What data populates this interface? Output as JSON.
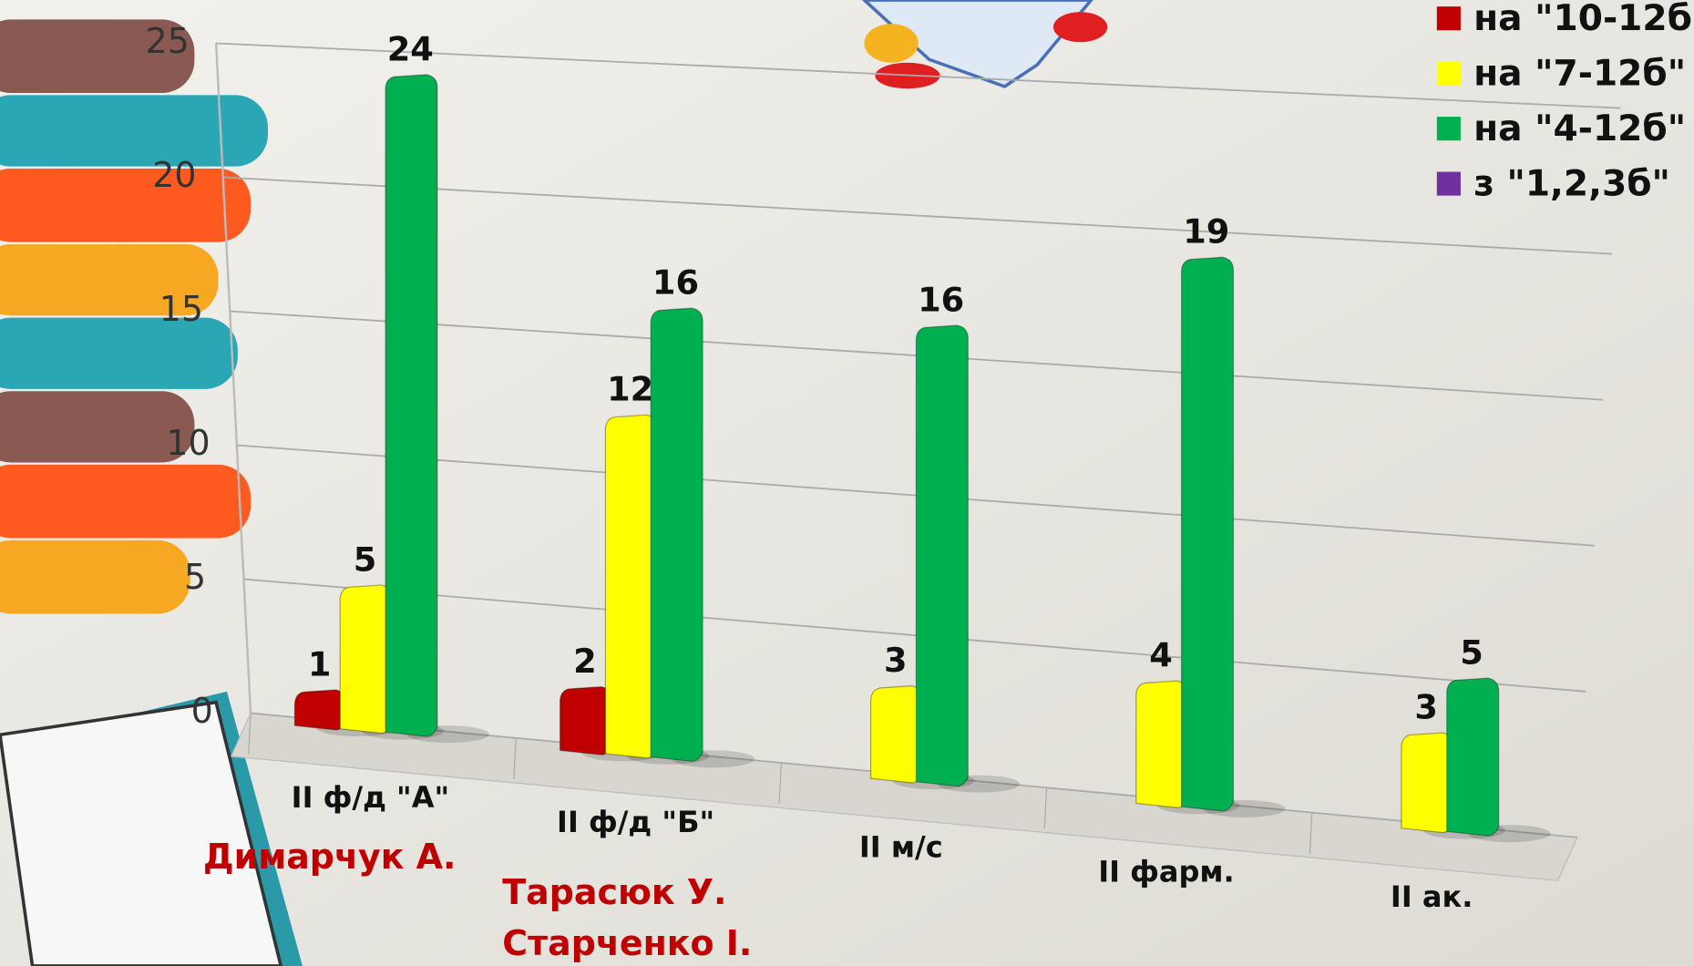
{
  "chart_data": {
    "type": "bar3d",
    "categories": [
      "II ф/д \"А\"",
      "II ф/д \"Б\"",
      "II м/с",
      "II фарм.",
      "II ак."
    ],
    "series": [
      {
        "name": "на \"10-12б\"",
        "color": "#c00000",
        "values": [
          1,
          2,
          null,
          null,
          null
        ]
      },
      {
        "name": "на \"7-12б\"",
        "color": "#ffff00",
        "values": [
          5,
          12,
          3,
          4,
          3
        ]
      },
      {
        "name": "на \"4-12б\"",
        "color": "#00b050",
        "values": [
          24,
          16,
          16,
          19,
          5
        ]
      },
      {
        "name": "з \"1,2,3б\"",
        "color": "#7030a0",
        "values": [
          null,
          null,
          null,
          null,
          null
        ]
      }
    ],
    "ylim": [
      0,
      25
    ],
    "yticks": [
      0,
      5,
      10,
      15,
      20,
      25
    ],
    "grid": true,
    "legend": "top-right",
    "annotations": [
      "Димарчук А.",
      "Тарасюк У.",
      "Старченко І."
    ]
  }
}
